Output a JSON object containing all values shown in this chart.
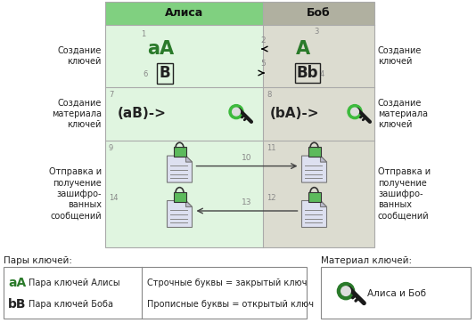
{
  "fig_width": 5.34,
  "fig_height": 3.72,
  "dpi": 100,
  "bg_color": "#ffffff",
  "alice_header": "Алиса",
  "bob_header": "Боб",
  "alice_header_bg": "#80d080",
  "bob_header_bg": "#b0b0a0",
  "alice_col_bg": "#e0f5e0",
  "bob_col_bg": "#dcdcd0",
  "grid_color": "#aaaaaa",
  "green_color": "#2a7a2a",
  "gray_color": "#888888",
  "dark_color": "#222222",
  "arrow_color": "#444444",
  "row1_label": "Создание\nключей",
  "row2_label": "Создание\nматериала\nключей",
  "row3_label": "Отправка и\nполучение\nзашифро-\nванных\nсообщений",
  "legend_pairs_label": "Пары ключей:",
  "legend_material_label": "Материал ключей:",
  "legend_alice_key": "аА",
  "legend_alice_desc": "Пара ключей Алисы",
  "legend_bob_key": "bB",
  "legend_bob_desc": "Пара ключей Боба",
  "legend_lower": "Строчные буквы = закрытый ключ",
  "legend_upper": "Прописные буквы = открытый ключ",
  "legend_material_desc": "Алиса и Боб",
  "lock_green": "#5cba5c",
  "lock_outline": "#333333"
}
